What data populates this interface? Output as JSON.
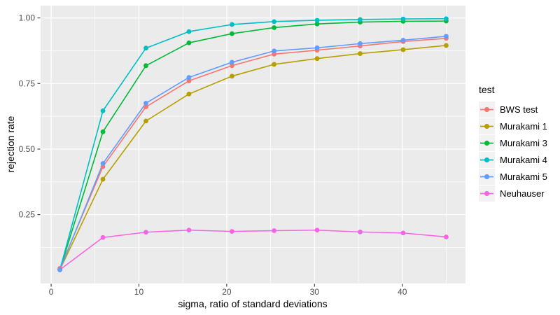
{
  "figure": {
    "background": "#FFFFFF",
    "panel_bg": "#EBEBEB",
    "grid_color": "#FFFFFF",
    "tick_color": "#333333",
    "tick_label_color": "#4D4D4D",
    "axis_title_color": "#000000",
    "legend_key_bg": "#F2F2F2"
  },
  "chart_data": {
    "type": "line",
    "title": "",
    "xlabel": "sigma, ratio of standard deviations",
    "ylabel": "rejection rate",
    "legend_title": "test",
    "legend_position": "right",
    "grid": true,
    "marker": "point",
    "x": [
      1,
      5.9,
      10.8,
      15.7,
      20.6,
      25.4,
      30.3,
      35.2,
      40.1,
      45
    ],
    "series": [
      {
        "name": "BWS test",
        "color": "#F8766D",
        "values": [
          0.045,
          0.433,
          0.661,
          0.76,
          0.818,
          0.862,
          0.877,
          0.893,
          0.91,
          0.922
        ]
      },
      {
        "name": "Murakami 1",
        "color": "#B79F00",
        "values": [
          0.04,
          0.385,
          0.607,
          0.71,
          0.778,
          0.823,
          0.845,
          0.864,
          0.879,
          0.895
        ]
      },
      {
        "name": "Murakami 3",
        "color": "#00BA38",
        "values": [
          0.04,
          0.566,
          0.818,
          0.905,
          0.94,
          0.963,
          0.977,
          0.984,
          0.987,
          0.988
        ]
      },
      {
        "name": "Murakami 4",
        "color": "#00BFC4",
        "values": [
          0.04,
          0.646,
          0.885,
          0.948,
          0.975,
          0.986,
          0.991,
          0.994,
          0.996,
          0.997
        ]
      },
      {
        "name": "Murakami 5",
        "color": "#619CFF",
        "values": [
          0.04,
          0.445,
          0.675,
          0.773,
          0.831,
          0.874,
          0.886,
          0.902,
          0.915,
          0.93
        ]
      },
      {
        "name": "Neuhauser",
        "color": "#F564E3",
        "values": [
          0.04,
          0.163,
          0.183,
          0.191,
          0.186,
          0.189,
          0.191,
          0.184,
          0.18,
          0.165
        ]
      }
    ],
    "x_ticks": {
      "values": [
        0,
        10,
        20,
        30,
        40
      ],
      "labels": [
        "0",
        "10",
        "20",
        "30",
        "40"
      ]
    },
    "y_ticks": {
      "values": [
        0.25,
        0.5,
        0.75,
        1.0
      ],
      "labels": [
        "0.25",
        "0.50",
        "0.75",
        "1.00"
      ]
    },
    "x_minor": [
      5,
      15,
      25,
      35,
      45
    ],
    "y_minor": [
      0.125,
      0.375,
      0.625,
      0.875
    ],
    "xlim": [
      -1.2,
      47.2
    ],
    "ylim": [
      -0.0125,
      1.047
    ]
  }
}
